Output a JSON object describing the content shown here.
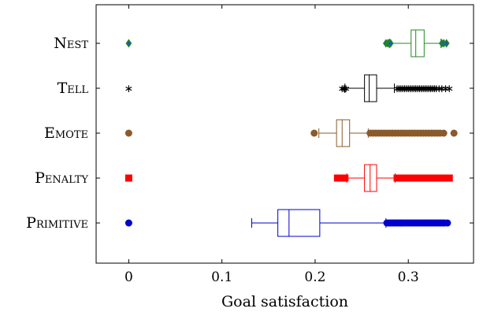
{
  "chart_data": {
    "type": "boxplot",
    "xlabel": "Goal satisfaction",
    "ylabel": "",
    "title": "",
    "xlim": [
      -0.035,
      0.37
    ],
    "xticks": [
      0,
      0.1,
      0.2,
      0.3
    ],
    "xtick_labels": [
      "0",
      "0.1",
      "0.2",
      "0.3"
    ],
    "grid": false,
    "legend": "none",
    "categories": [
      "Nest",
      "Tell",
      "Emote",
      "Penalty",
      "Primitive"
    ],
    "series": [
      {
        "name": "Nest",
        "color": "#228B22",
        "marker": "diamond",
        "legend_marker_x": 0,
        "whisker_low": 0.28,
        "q1": 0.303,
        "median": 0.308,
        "q3": 0.317,
        "whisker_high": 0.335,
        "outliers": [
          0.276,
          0.278,
          0.279,
          0.281,
          0.336,
          0.338,
          0.341
        ]
      },
      {
        "name": "Tell",
        "color": "#000000",
        "marker": "star",
        "legend_marker_x": 0,
        "whisker_low": 0.232,
        "q1": 0.253,
        "median": 0.258,
        "q3": 0.266,
        "whisker_high": 0.285,
        "outliers": [
          0.229,
          0.231,
          0.233,
          0.288,
          0.29,
          0.292,
          0.294,
          0.296,
          0.298,
          0.3,
          0.302,
          0.304,
          0.306,
          0.308,
          0.31,
          0.312,
          0.314,
          0.316,
          0.318,
          0.32,
          0.322,
          0.324,
          0.326,
          0.328,
          0.33,
          0.333,
          0.336,
          0.34,
          0.344
        ]
      },
      {
        "name": "Emote",
        "color": "#8B5A2B",
        "marker": "circle",
        "legend_marker_x": 0,
        "whisker_low": 0.204,
        "q1": 0.223,
        "median": 0.229,
        "q3": 0.237,
        "whisker_high": 0.257,
        "outliers": [
          0.199,
          0.259,
          0.262,
          0.265,
          0.268,
          0.271,
          0.274,
          0.277,
          0.28,
          0.283,
          0.286,
          0.289,
          0.292,
          0.295,
          0.298,
          0.301,
          0.304,
          0.307,
          0.31,
          0.313,
          0.316,
          0.319,
          0.322,
          0.325,
          0.328,
          0.331,
          0.334,
          0.338,
          0.349
        ]
      },
      {
        "name": "Penalty",
        "color": "#FF0000",
        "marker": "square",
        "legend_marker_x": 0,
        "whisker_low": 0.234,
        "q1": 0.253,
        "median": 0.259,
        "q3": 0.266,
        "whisker_high": 0.286,
        "outliers": [
          0.224,
          0.226,
          0.228,
          0.23,
          0.232,
          0.288,
          0.29,
          0.292,
          0.294,
          0.296,
          0.298,
          0.3,
          0.302,
          0.304,
          0.306,
          0.308,
          0.31,
          0.312,
          0.314,
          0.316,
          0.318,
          0.32,
          0.322,
          0.324,
          0.326,
          0.328,
          0.33,
          0.332,
          0.334,
          0.336,
          0.338,
          0.34,
          0.342,
          0.344
        ]
      },
      {
        "name": "Primitive",
        "color": "#0000CD",
        "marker": "circle",
        "legend_marker_x": 0,
        "whisker_low": 0.132,
        "q1": 0.16,
        "median": 0.172,
        "q3": 0.205,
        "whisker_high": 0.276,
        "outliers": [
          0.277,
          0.279,
          0.281,
          0.283,
          0.285,
          0.287,
          0.289,
          0.291,
          0.293,
          0.295,
          0.297,
          0.299,
          0.301,
          0.303,
          0.305,
          0.307,
          0.309,
          0.311,
          0.313,
          0.315,
          0.317,
          0.319,
          0.321,
          0.323,
          0.325,
          0.327,
          0.329,
          0.331,
          0.333,
          0.335,
          0.337,
          0.339,
          0.342
        ]
      }
    ]
  }
}
